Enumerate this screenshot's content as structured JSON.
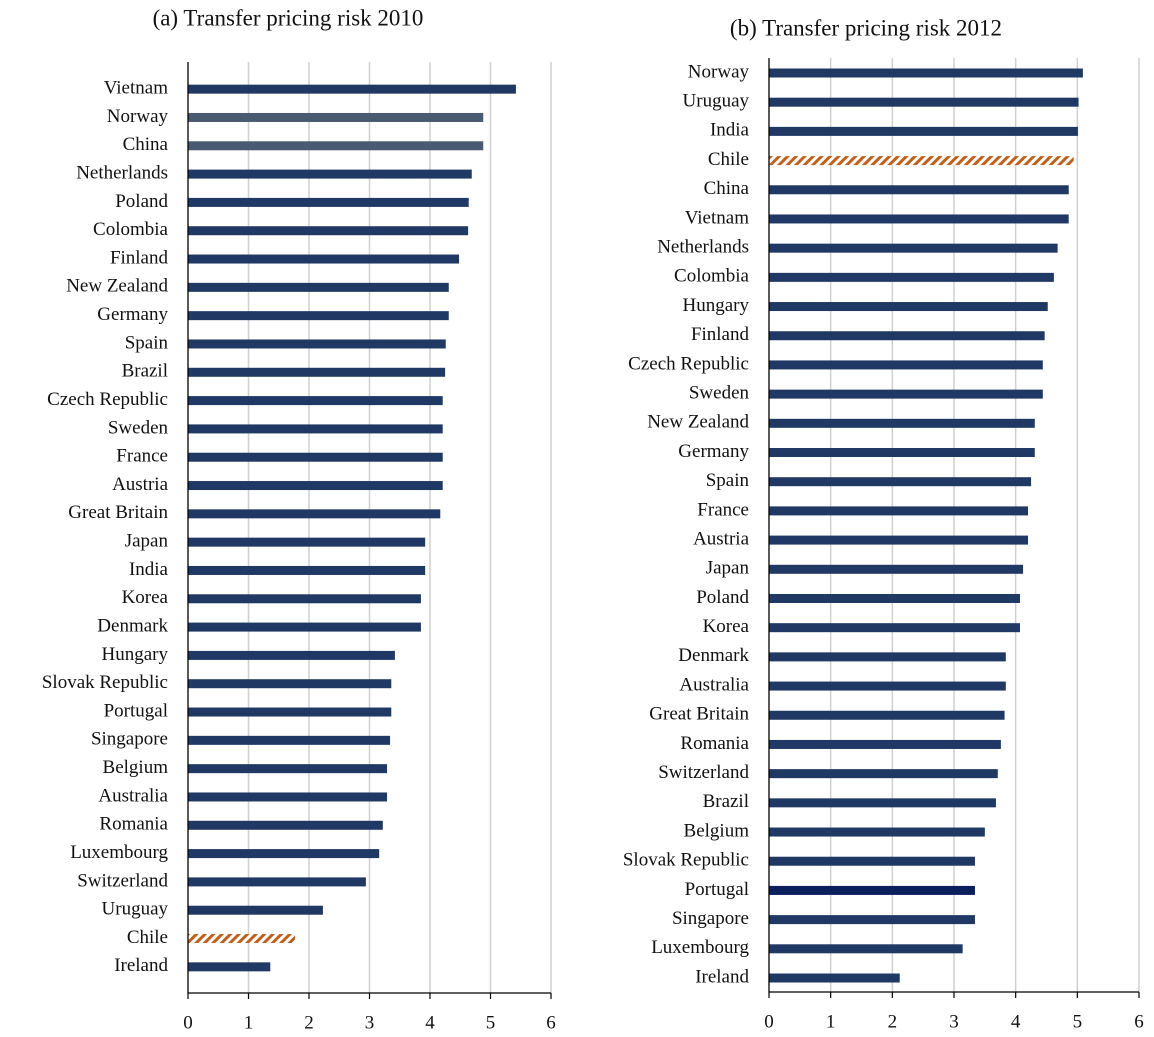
{
  "chart_data": [
    {
      "type": "hbar",
      "title": "(a) Transfer pricing risk 2010",
      "categories": [
        "Vietnam",
        "Norway",
        "China",
        "Netherlands",
        "Poland",
        "Colombia",
        "Finland",
        "New Zealand",
        "Germany",
        "Spain",
        "Brazil",
        "Czech Republic",
        "Sweden",
        "France",
        "Austria",
        "Great Britain",
        "Japan",
        "India",
        "Korea",
        "Denmark",
        "Hungary",
        "Slovak Republic",
        "Portugal",
        "Singapore",
        "Belgium",
        "Australia",
        "Romania",
        "Luxembourg",
        "Switzerland",
        "Uruguay",
        "Chile",
        "Ireland"
      ],
      "values": [
        5.42,
        4.88,
        4.88,
        4.69,
        4.64,
        4.63,
        4.48,
        4.31,
        4.31,
        4.26,
        4.25,
        4.21,
        4.21,
        4.21,
        4.21,
        4.17,
        3.92,
        3.92,
        3.85,
        3.85,
        3.42,
        3.36,
        3.36,
        3.34,
        3.29,
        3.29,
        3.22,
        3.16,
        2.94,
        2.23,
        1.77,
        1.36
      ],
      "colors": [
        "#1f3864",
        "#4a5a70",
        "#4a5a70",
        "#1f3864",
        "#1f3864",
        "#1f3864",
        "#1f3864",
        "#1f3864",
        "#1f3864",
        "#1f3864",
        "#1f3864",
        "#1f3864",
        "#1f3864",
        "#1f3864",
        "#1f3864",
        "#1f3864",
        "#1f3864",
        "#1f3864",
        "#1f3864",
        "#1f3864",
        "#1f3864",
        "#1f3864",
        "#1f3864",
        "#1f3864",
        "#1f3864",
        "#1f3864",
        "#1f3864",
        "#1f3864",
        "#1f3864",
        "#1f3864",
        "#c0601a",
        "#1f3864"
      ],
      "hatched": [
        false,
        false,
        false,
        false,
        false,
        false,
        false,
        false,
        false,
        false,
        false,
        false,
        false,
        false,
        false,
        false,
        false,
        false,
        false,
        false,
        false,
        false,
        false,
        false,
        false,
        false,
        false,
        false,
        false,
        false,
        true,
        false
      ],
      "xlim": [
        0,
        6
      ],
      "xticks": [
        0,
        1,
        2,
        3,
        4,
        5,
        6
      ],
      "grid": true
    },
    {
      "type": "hbar",
      "title": "(b) Transfer pricing risk 2012",
      "categories": [
        "Norway",
        "Uruguay",
        "India",
        "Chile",
        "China",
        "Vietnam",
        "Netherlands",
        "Colombia",
        "Hungary",
        "Finland",
        "Czech Republic",
        "Sweden",
        "New Zealand",
        "Germany",
        "Spain",
        "France",
        "Austria",
        "Japan",
        "Poland",
        "Korea",
        "Denmark",
        "Australia",
        "Great Britain",
        "Romania",
        "Switzerland",
        "Brazil",
        "Belgium",
        "Slovak Republic",
        "Portugal",
        "Singapore",
        "Luxembourg",
        "Ireland"
      ],
      "values": [
        5.09,
        5.02,
        5.01,
        4.94,
        4.86,
        4.86,
        4.68,
        4.62,
        4.52,
        4.47,
        4.44,
        4.44,
        4.31,
        4.31,
        4.25,
        4.2,
        4.2,
        4.12,
        4.07,
        4.07,
        3.84,
        3.84,
        3.82,
        3.76,
        3.71,
        3.68,
        3.5,
        3.34,
        3.34,
        3.34,
        3.14,
        2.12
      ],
      "colors": [
        "#1f3864",
        "#1f3864",
        "#1f3864",
        "#c0601a",
        "#1f3864",
        "#1f3864",
        "#1f3864",
        "#1f3864",
        "#1f3864",
        "#1f3864",
        "#1f3864",
        "#1f3864",
        "#1f3864",
        "#1f3864",
        "#1f3864",
        "#1f3864",
        "#1f3864",
        "#1f3864",
        "#1f3864",
        "#1f3864",
        "#1f3864",
        "#1f3864",
        "#1f3864",
        "#1f3864",
        "#1f3864",
        "#1f3864",
        "#1f3864",
        "#1f3864",
        "#0a1f5c",
        "#1f3864",
        "#1f3864",
        "#1f3864"
      ],
      "hatched": [
        false,
        false,
        false,
        true,
        false,
        false,
        false,
        false,
        false,
        false,
        false,
        false,
        false,
        false,
        false,
        false,
        false,
        false,
        false,
        false,
        false,
        false,
        false,
        false,
        false,
        false,
        false,
        false,
        false,
        false,
        false,
        false
      ],
      "xlim": [
        0,
        6
      ],
      "xticks": [
        0,
        1,
        2,
        3,
        4,
        5,
        6
      ],
      "grid": true
    }
  ]
}
